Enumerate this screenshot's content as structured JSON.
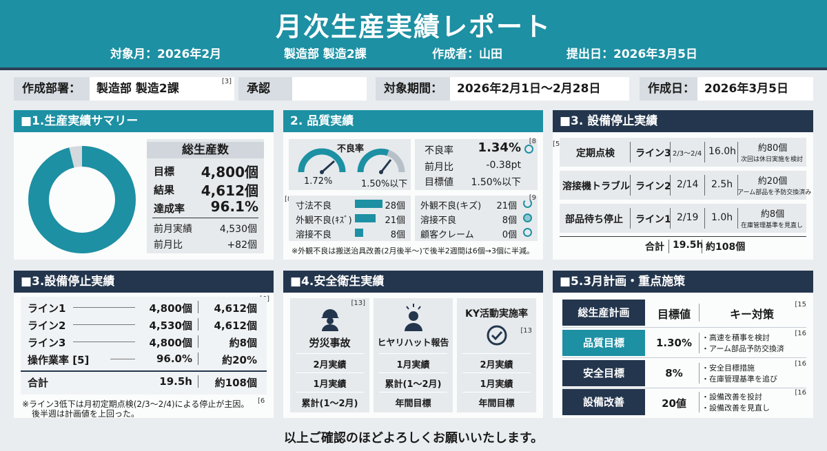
{
  "header": {
    "title": "月次生産実績レポート",
    "target_month": "対象月：2026年2月",
    "department": "製造部 製造2課",
    "author": "作成者：山田",
    "submit_date": "提出日：2026年3月5日"
  },
  "info": {
    "dept_label": "作成部署：",
    "dept_value": "製造部 製造2課",
    "dept_ref": "[3]",
    "approve_label": "承認",
    "period_label": "対象期間：",
    "period_value": "2026年2月1日〜2月28日",
    "created_label": "作成日：",
    "created_value": "2026年3月5日"
  },
  "summary": {
    "title": "■1.生産実績サマリー",
    "box_title": "総生産数",
    "rows": [
      {
        "label": "目標",
        "value": "4,800個"
      },
      {
        "label": "結果",
        "value": "4,612個"
      },
      {
        "label": "達成率",
        "value": "96.1%"
      }
    ],
    "prev_rows": [
      {
        "label": "前月実績",
        "value": "4,530個"
      },
      {
        "label": "前月比",
        "value": "+82個"
      }
    ],
    "achievement": 0.961
  },
  "quality": {
    "title": "2. 品質実績",
    "gauge_title": "不良率",
    "gauge1_value": "1.72%",
    "gauge2_value": "1.50%以下",
    "stats": [
      {
        "label": "不良率",
        "value": "1.34%"
      },
      {
        "label": "前月比",
        "value": "-0.38pt"
      },
      {
        "label": "目標値",
        "value": "1.50%以下"
      }
    ],
    "stats_ref": "[8",
    "defects_ref": "[8]",
    "defects": [
      {
        "label": "寸法不良",
        "value": "28個",
        "ratio": 1.0
      },
      {
        "label": "外観不良(ｷｽﾞ)",
        "value": "21個",
        "ratio": 0.75
      },
      {
        "label": "溶接不良",
        "value": "8個",
        "ratio": 0.29
      }
    ],
    "right_ref": "[9",
    "right_items": [
      {
        "label": "外観不良(キズ)",
        "value": "21個"
      },
      {
        "label": "溶接不良",
        "value": "8個"
      },
      {
        "label": "顧客クレーム",
        "value": "0個"
      }
    ],
    "note": "※外観不良は搬送治具改善(2月後半〜)で後半2週間は6個→3個に半減。"
  },
  "downtime": {
    "title": "■3. 設備停止実績",
    "ref": "[5",
    "rows": [
      {
        "reason": "定期点検",
        "line": "ライン3",
        "date": "2/3〜2/4",
        "hours": "16.0h",
        "loss": "約80個",
        "note": "次回は休日実施を検討"
      },
      {
        "reason": "溶接機トラブル",
        "line": "ライン2",
        "date": "2/14",
        "hours": "2.5h",
        "loss": "約20個",
        "note": "アーム部品を予防交換済み"
      },
      {
        "reason": "部品待ち停止",
        "line": "ライン1",
        "date": "2/19",
        "hours": "1.0h",
        "loss": "約8個",
        "note": "在庫管理基準を見直し"
      }
    ],
    "total_label": "合計",
    "total_hours": "19.5h",
    "total_loss": "約108個"
  },
  "equipment": {
    "title": "■3.設備停止実績",
    "ref": "[6]",
    "rows": [
      {
        "label": "ライン1",
        "plan": "4,800個",
        "actual": "4,612個"
      },
      {
        "label": "ライン2",
        "plan": "4,530個",
        "actual": "4,612個"
      },
      {
        "label": "ライン3",
        "plan": "4,800個",
        "actual": "約8個"
      },
      {
        "label": "操作業率 [5]",
        "plan": "96.0%",
        "actual": "約20%"
      }
    ],
    "total_label": "合計",
    "total_hours": "19.5h",
    "total_loss": "約108個",
    "note1": "※ライン3低下は月初定期点検(2/3〜2/4)による停止が主因。",
    "note_ref": "[6",
    "note2": "後半週は計画値を上回った。"
  },
  "safety": {
    "title": "■4.安全衛生実績",
    "ref": "[13]",
    "cards": [
      {
        "title": "労災事故",
        "rows": [
          "2月実績",
          "1月実績",
          "累計(1〜2月)"
        ]
      },
      {
        "title": "ヒヤリハット報告",
        "rows": [
          "1月実績",
          "累計(1〜2月)",
          "年間目標"
        ]
      },
      {
        "title": "KY活動実施率",
        "ref": "[13",
        "rows": [
          "2月実績",
          "1月実績",
          "年間目標"
        ]
      }
    ]
  },
  "plan": {
    "title": "■5.3月計画・重点施策",
    "head": {
      "col1": "総生産計画",
      "col2": "目標値",
      "col3": "キー対策",
      "ref": "[15"
    },
    "rows": [
      {
        "label": "品質目標",
        "value": "1.30%",
        "items": [
          "・高速を積事を検討",
          "・アーム部品予防交換済"
        ],
        "ref": "[16"
      },
      {
        "label": "安全目標",
        "value": "8%",
        "items": [
          "・安全目標措施",
          "・在庫管理基準を追び"
        ],
        "ref": "[16"
      },
      {
        "label": "設備改善",
        "value": "20値",
        "items": [
          "・設備改善を投討",
          "・設備改善を見直し"
        ],
        "ref": "[16"
      }
    ]
  },
  "footer": "以上ご確認のほどよろしくお願いいたします。",
  "colors": {
    "teal": "#1d90a3",
    "navy": "#24364d",
    "background": "#e9edf0"
  }
}
